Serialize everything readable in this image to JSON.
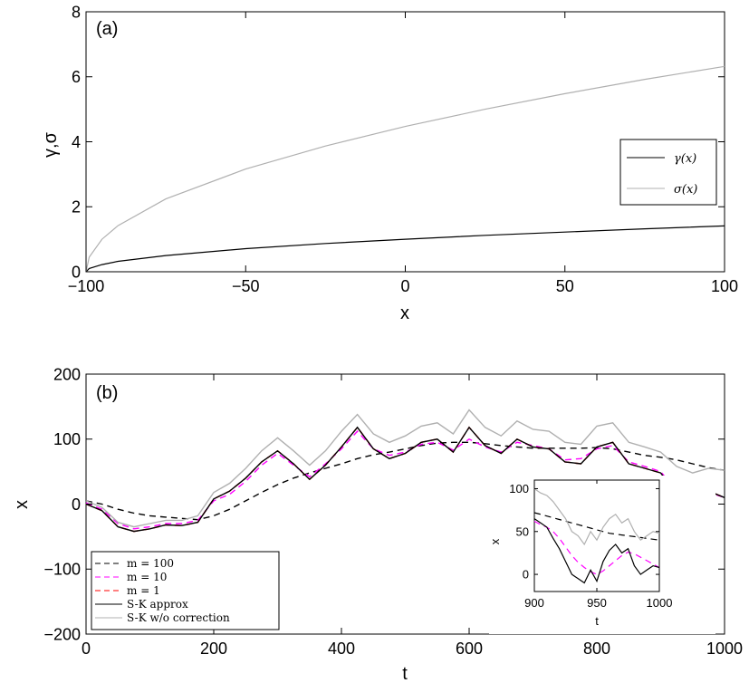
{
  "chart_data": [
    {
      "type": "line",
      "panel_label": "(a)",
      "xlabel": "x",
      "ylabel": "γ,σ",
      "xlim": [
        -100,
        100
      ],
      "ylim": [
        0,
        8
      ],
      "xticks": [
        -100,
        -50,
        0,
        50,
        100
      ],
      "xtick_labels": [
        "−100",
        "−50",
        "0",
        "50",
        "100"
      ],
      "yticks": [
        0,
        2,
        4,
        6,
        8
      ],
      "ytick_labels": [
        "0",
        "2",
        "4",
        "6",
        "8"
      ],
      "grid": false,
      "legend_position": "right",
      "series": [
        {
          "name": "γ(x)",
          "color": "#000000",
          "x": [
            -100,
            -99,
            -95,
            -90,
            -75,
            -50,
            -25,
            0,
            25,
            50,
            75,
            100
          ],
          "values": [
            0,
            0.1,
            0.22,
            0.32,
            0.5,
            0.71,
            0.87,
            1.0,
            1.12,
            1.22,
            1.32,
            1.41
          ]
        },
        {
          "name": "σ(x)",
          "color": "#b0b0b0",
          "x": [
            -100,
            -99,
            -95,
            -90,
            -75,
            -50,
            -25,
            0,
            25,
            50,
            75,
            100
          ],
          "values": [
            0,
            0.45,
            1.0,
            1.42,
            2.24,
            3.16,
            3.87,
            4.47,
            5.0,
            5.48,
            5.92,
            6.32
          ]
        }
      ]
    },
    {
      "type": "line",
      "panel_label": "(b)",
      "xlabel": "t",
      "ylabel": "x",
      "xlim": [
        0,
        1000
      ],
      "ylim": [
        -200,
        200
      ],
      "xticks": [
        0,
        200,
        400,
        600,
        800,
        1000
      ],
      "xtick_labels": [
        "0",
        "200",
        "400",
        "600",
        "800",
        "1000"
      ],
      "yticks": [
        -200,
        -100,
        0,
        100,
        200
      ],
      "ytick_labels": [
        "−200",
        "−100",
        "0",
        "100",
        "200"
      ],
      "grid": false,
      "legend_position": "bottom-left",
      "x": [
        0,
        25,
        50,
        75,
        100,
        125,
        150,
        175,
        200,
        225,
        250,
        275,
        300,
        325,
        350,
        375,
        400,
        425,
        450,
        475,
        500,
        525,
        550,
        575,
        600,
        625,
        650,
        675,
        700,
        725,
        750,
        775,
        800,
        825,
        850,
        875,
        900,
        925,
        950,
        975,
        1000
      ],
      "series": [
        {
          "name": "m = 100",
          "color": "#000000",
          "dash": "dashed",
          "values": [
            5,
            0,
            -8,
            -14,
            -18,
            -20,
            -22,
            -24,
            -18,
            -8,
            5,
            18,
            30,
            40,
            48,
            55,
            62,
            70,
            76,
            80,
            85,
            90,
            94,
            95,
            95,
            93,
            90,
            88,
            86,
            86,
            86,
            86,
            87,
            85,
            80,
            75,
            72,
            68,
            62,
            56,
            52
          ]
        },
        {
          "name": "m = 10",
          "color": "#ff00ff",
          "dash": "dashed",
          "values": [
            2,
            -8,
            -30,
            -38,
            -35,
            -30,
            -30,
            -25,
            5,
            15,
            35,
            60,
            78,
            60,
            42,
            62,
            85,
            112,
            85,
            75,
            80,
            92,
            95,
            83,
            100,
            88,
            80,
            95,
            90,
            85,
            68,
            70,
            85,
            90,
            65,
            58,
            50,
            20,
            12,
            18,
            10
          ]
        },
        {
          "name": "m = 1",
          "color": "#ff0000",
          "dash": "dashed",
          "values": [
            0,
            -10,
            -35,
            -42,
            -38,
            -32,
            -33,
            -28,
            8,
            20,
            40,
            65,
            82,
            62,
            38,
            60,
            88,
            118,
            85,
            70,
            78,
            95,
            100,
            80,
            118,
            90,
            78,
            100,
            88,
            85,
            65,
            62,
            88,
            95,
            62,
            55,
            48,
            15,
            8,
            20,
            10
          ]
        },
        {
          "name": "S-K approx",
          "color": "#000000",
          "dash": "solid",
          "values": [
            0,
            -10,
            -35,
            -42,
            -38,
            -32,
            -33,
            -28,
            8,
            20,
            40,
            65,
            82,
            62,
            38,
            60,
            88,
            118,
            85,
            70,
            78,
            95,
            100,
            80,
            118,
            90,
            78,
            100,
            88,
            85,
            65,
            62,
            88,
            95,
            62,
            55,
            48,
            15,
            8,
            20,
            10
          ]
        },
        {
          "name": "S-K w/o correction",
          "color": "#b0b0b0",
          "dash": "solid",
          "values": [
            5,
            -5,
            -28,
            -35,
            -30,
            -25,
            -25,
            -18,
            18,
            32,
            55,
            82,
            102,
            82,
            60,
            82,
            112,
            138,
            108,
            95,
            105,
            120,
            125,
            108,
            145,
            118,
            105,
            128,
            115,
            112,
            95,
            92,
            120,
            125,
            95,
            88,
            80,
            58,
            48,
            55,
            52
          ]
        }
      ]
    },
    {
      "type": "line",
      "inset": true,
      "xlabel": "t",
      "ylabel": "x",
      "xlim": [
        900,
        1000
      ],
      "ylim": [
        -20,
        110
      ],
      "xticks": [
        900,
        950,
        1000
      ],
      "xtick_labels": [
        "900",
        "950",
        "1000"
      ],
      "yticks": [
        0,
        50,
        100
      ],
      "ytick_labels": [
        "0",
        "50",
        "100"
      ],
      "x": [
        900,
        905,
        910,
        915,
        920,
        925,
        930,
        935,
        940,
        945,
        950,
        955,
        960,
        965,
        970,
        975,
        980,
        985,
        990,
        995,
        1000
      ],
      "series": [
        {
          "name": "m = 100",
          "color": "#000000",
          "dash": "dashed",
          "values": [
            72,
            70,
            68,
            66,
            64,
            62,
            60,
            58,
            56,
            54,
            52,
            50,
            48,
            47,
            46,
            45,
            44,
            43,
            42,
            41,
            40
          ]
        },
        {
          "name": "m = 10",
          "color": "#ff00ff",
          "dash": "dashed",
          "values": [
            62,
            58,
            55,
            50,
            42,
            32,
            22,
            14,
            8,
            3,
            0,
            4,
            10,
            16,
            22,
            26,
            24,
            20,
            16,
            12,
            8
          ]
        },
        {
          "name": "S-K approx",
          "color": "#000000",
          "dash": "solid",
          "values": [
            65,
            60,
            55,
            42,
            30,
            15,
            0,
            -5,
            -10,
            5,
            -8,
            15,
            28,
            35,
            25,
            30,
            10,
            0,
            5,
            10,
            8
          ]
        },
        {
          "name": "S-K w/o correction",
          "color": "#b0b0b0",
          "dash": "solid",
          "values": [
            100,
            95,
            92,
            85,
            75,
            65,
            50,
            45,
            35,
            50,
            40,
            55,
            65,
            70,
            60,
            65,
            50,
            40,
            45,
            50,
            48
          ]
        }
      ]
    }
  ]
}
